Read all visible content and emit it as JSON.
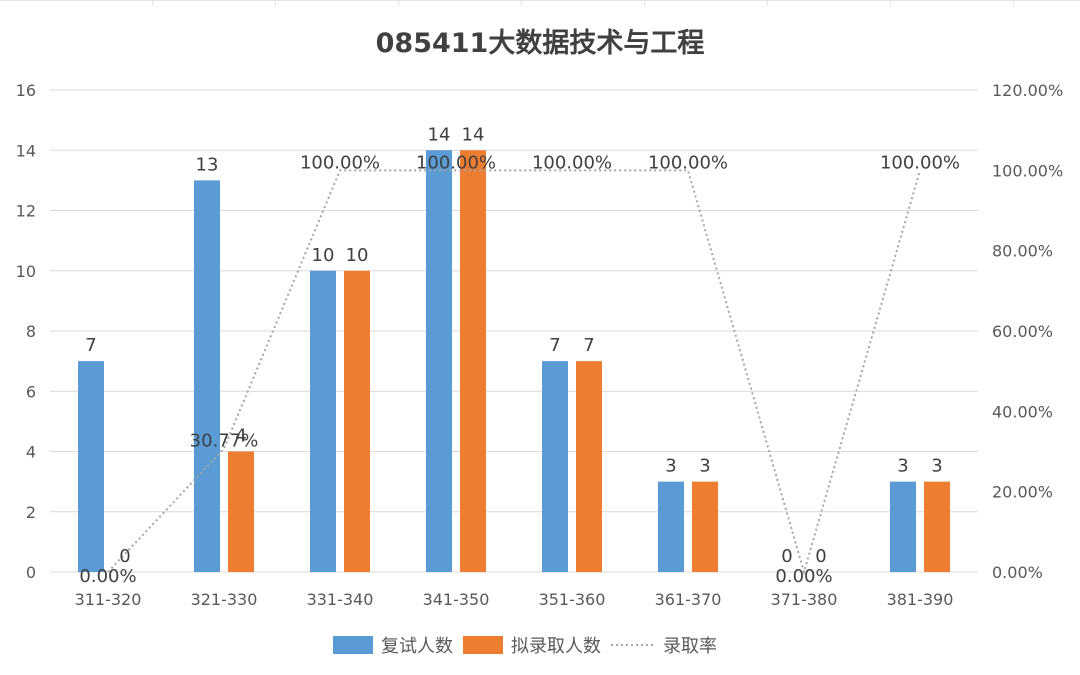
{
  "chart_data": {
    "type": "bar",
    "title": "085411大数据技术与工程",
    "categories": [
      "311-320",
      "321-330",
      "331-340",
      "341-350",
      "351-360",
      "361-370",
      "371-380",
      "381-390"
    ],
    "series": [
      {
        "name": "复试人数",
        "type": "bar",
        "axis": "left",
        "color": "#5b9bd5",
        "values": [
          7,
          13,
          10,
          14,
          7,
          3,
          0,
          3
        ],
        "labels": [
          "7",
          "13",
          "10",
          "14",
          "7",
          "3",
          "0",
          "3"
        ]
      },
      {
        "name": "拟录取人数",
        "type": "bar",
        "axis": "left",
        "color": "#ed7d31",
        "values": [
          0,
          4,
          10,
          14,
          7,
          3,
          0,
          3
        ],
        "labels": [
          "0",
          "4",
          "10",
          "14",
          "7",
          "3",
          "0",
          "3"
        ]
      },
      {
        "name": "录取率",
        "type": "line",
        "axis": "right",
        "color": "#a5a5a5",
        "line_style": "dotted",
        "values": [
          0,
          30.77,
          100,
          100,
          100,
          100,
          0,
          100
        ],
        "labels": [
          "0.00%",
          "30.77%",
          "100.00%",
          "100.00%",
          "100.00%",
          "100.00%",
          "0.00%",
          "100.00%"
        ]
      }
    ],
    "y_left": {
      "min": 0,
      "max": 16,
      "ticks": [
        "0",
        "2",
        "4",
        "6",
        "8",
        "10",
        "12",
        "14",
        "16"
      ]
    },
    "y_right": {
      "min": 0,
      "max": 120,
      "ticks": [
        "0.00%",
        "20.00%",
        "40.00%",
        "60.00%",
        "80.00%",
        "100.00%",
        "120.00%"
      ]
    },
    "grid": true,
    "legend_position": "bottom"
  }
}
